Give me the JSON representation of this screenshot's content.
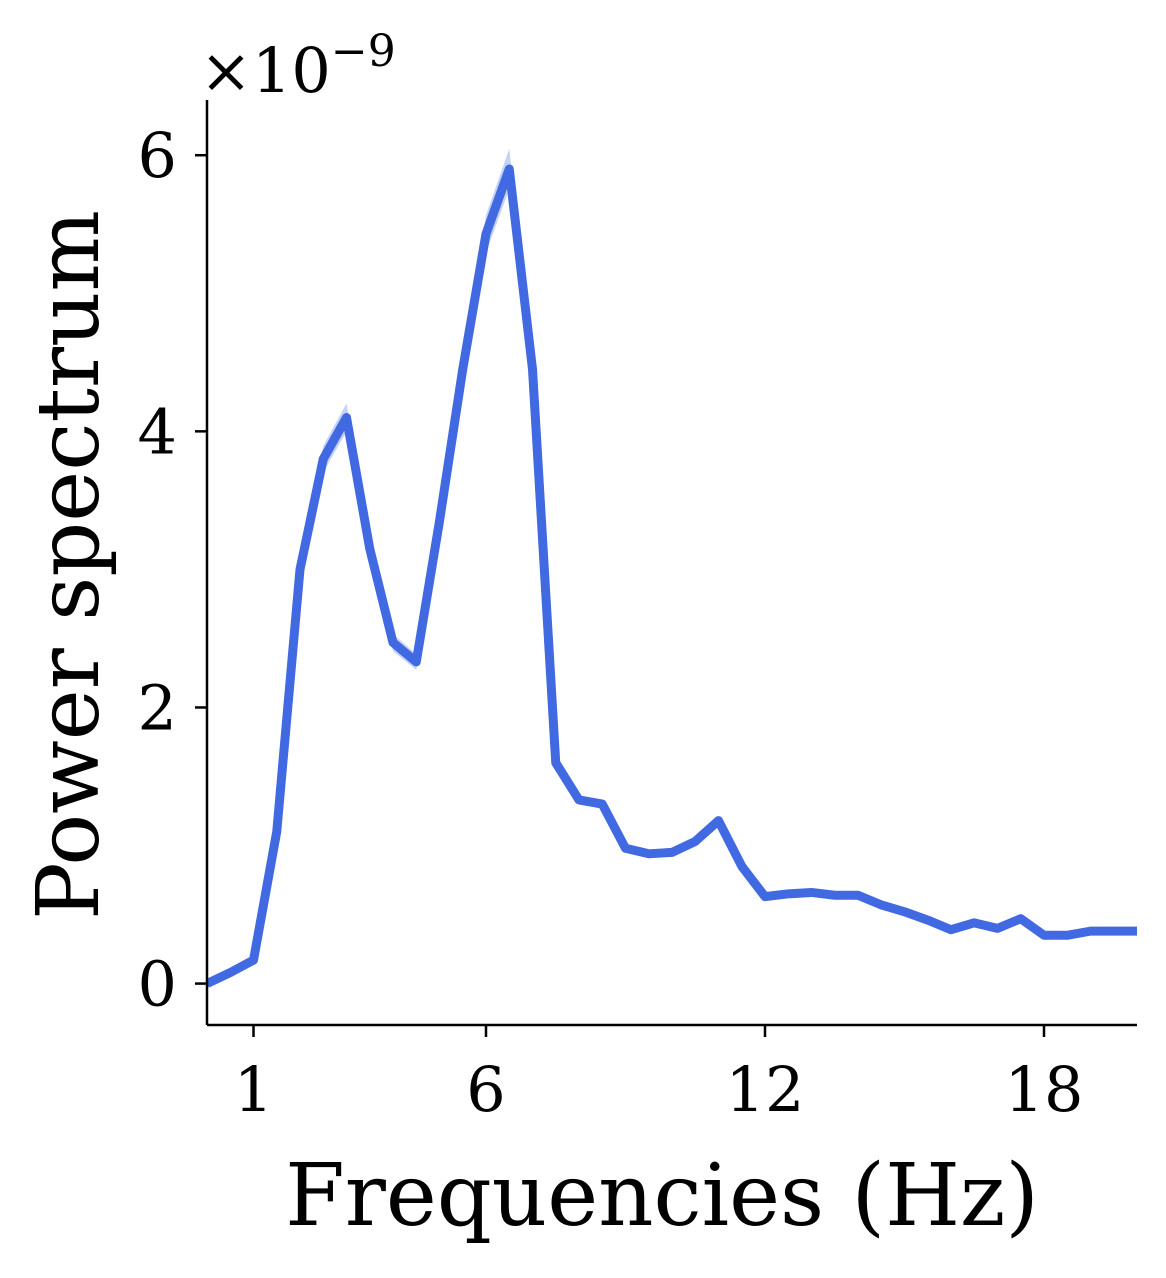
{
  "chart_data": {
    "type": "line",
    "title": "",
    "xlabel": "Frequencies (Hz)",
    "ylabel": "Power spectrum",
    "y_offset_label": {
      "base": "×10",
      "exponent": "−9"
    },
    "xlim": [
      0,
      20
    ],
    "ylim": [
      -0.3,
      6.4
    ],
    "x_ticks": [
      1,
      6,
      12,
      18
    ],
    "x_tick_labels": [
      "1",
      "6",
      "12",
      "18"
    ],
    "y_ticks": [
      0,
      2,
      4,
      6
    ],
    "y_tick_labels": [
      "0",
      "2",
      "4",
      "6"
    ],
    "grid": false,
    "color": "#4169e1",
    "series": [
      {
        "name": "Power spectrum",
        "x": [
          0,
          0.5,
          1,
          1.5,
          2,
          2.5,
          3,
          3.5,
          4,
          4.5,
          5,
          5.5,
          6,
          6.5,
          7,
          7.5,
          8,
          8.5,
          9,
          9.5,
          10,
          10.5,
          11,
          11.5,
          12,
          12.5,
          13,
          13.5,
          14,
          14.5,
          15,
          15.5,
          16,
          16.5,
          17,
          17.5,
          18,
          18.5,
          19,
          19.5,
          20
        ],
        "y": [
          0.0,
          0.08,
          0.17,
          1.1,
          3.0,
          3.8,
          4.1,
          3.15,
          2.47,
          2.33,
          3.35,
          4.45,
          5.43,
          5.9,
          4.45,
          1.6,
          1.33,
          1.3,
          0.98,
          0.94,
          0.95,
          1.03,
          1.18,
          0.85,
          0.63,
          0.65,
          0.66,
          0.64,
          0.64,
          0.57,
          0.52,
          0.46,
          0.39,
          0.44,
          0.4,
          0.47,
          0.35,
          0.35,
          0.38,
          0.38,
          0.38
        ]
      }
    ]
  }
}
